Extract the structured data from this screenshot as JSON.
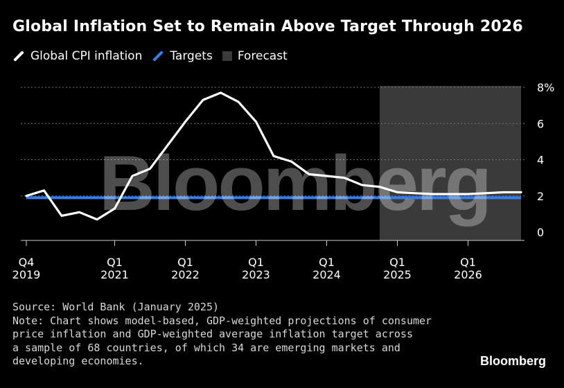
{
  "title": "Global Inflation Set to Remain Above Target Through 2026",
  "legend": {
    "cpi_label": "Global CPI inflation",
    "targets_label": "Targets",
    "forecast_label": "Forecast"
  },
  "colors": {
    "cpi": "#ffffff",
    "targets": "#2f7ff5",
    "forecast": "#3a3a3a",
    "grid": "#777777",
    "background": "#000000"
  },
  "watermark_text": "Bloomberg",
  "source": "Source: World Bank (January 2025)",
  "note_lines": [
    "Note: Chart shows model-based, GDP-weighted projections of consumer",
    "price inflation and GDP-weighted average inflation target across",
    "a sample of 68 countries, of which 34 are emerging markets and",
    "developing economies."
  ],
  "brand": "Bloomberg",
  "chart_data": {
    "type": "line",
    "x_unit": "quarter",
    "x": [
      "2019Q4",
      "2020Q1",
      "2020Q2",
      "2020Q3",
      "2020Q4",
      "2021Q1",
      "2021Q2",
      "2021Q3",
      "2021Q4",
      "2022Q1",
      "2022Q2",
      "2022Q3",
      "2022Q4",
      "2023Q1",
      "2023Q2",
      "2023Q3",
      "2023Q4",
      "2024Q1",
      "2024Q2",
      "2024Q3",
      "2024Q4",
      "2025Q1",
      "2025Q2",
      "2025Q3",
      "2025Q4",
      "2026Q1",
      "2026Q2",
      "2026Q3",
      "2026Q4"
    ],
    "series": [
      {
        "name": "Global CPI inflation",
        "values": [
          2.0,
          2.3,
          0.9,
          1.1,
          0.7,
          1.3,
          3.1,
          3.5,
          4.8,
          6.1,
          7.3,
          7.7,
          7.2,
          6.1,
          4.2,
          3.9,
          3.2,
          3.1,
          3.0,
          2.6,
          2.5,
          2.2,
          2.15,
          2.1,
          2.1,
          2.1,
          2.15,
          2.2,
          2.2
        ]
      },
      {
        "name": "Targets",
        "values": [
          1.9,
          1.9,
          1.9,
          1.9,
          1.9,
          1.9,
          1.9,
          1.9,
          1.9,
          1.9,
          1.9,
          1.9,
          1.9,
          1.9,
          1.9,
          1.9,
          1.9,
          1.9,
          1.9,
          1.9,
          1.9,
          1.9,
          1.9,
          1.9,
          1.9,
          1.9,
          1.9,
          1.9,
          1.9
        ]
      }
    ],
    "forecast_range": [
      "2024Q4",
      "2026Q4"
    ],
    "ylim": [
      0,
      8
    ],
    "yticks": [
      {
        "value": 8,
        "label": "8%"
      },
      {
        "value": 6,
        "label": "6"
      },
      {
        "value": 4,
        "label": "4"
      },
      {
        "value": 2,
        "label": "2"
      },
      {
        "value": 0,
        "label": "0"
      }
    ],
    "xticks": [
      {
        "x": "2019Q4",
        "line1": "Q4",
        "line2": "2019"
      },
      {
        "x": "2021Q1",
        "line1": "Q1",
        "line2": "2021"
      },
      {
        "x": "2022Q1",
        "line1": "Q1",
        "line2": "2022"
      },
      {
        "x": "2023Q1",
        "line1": "Q1",
        "line2": "2023"
      },
      {
        "x": "2024Q1",
        "line1": "Q1",
        "line2": "2024"
      },
      {
        "x": "2025Q1",
        "line1": "Q1",
        "line2": "2025"
      },
      {
        "x": "2026Q1",
        "line1": "Q1",
        "line2": "2026"
      }
    ],
    "grid": "horizontal dotted",
    "legend_position": "top-left",
    "y_axis_side": "right"
  }
}
